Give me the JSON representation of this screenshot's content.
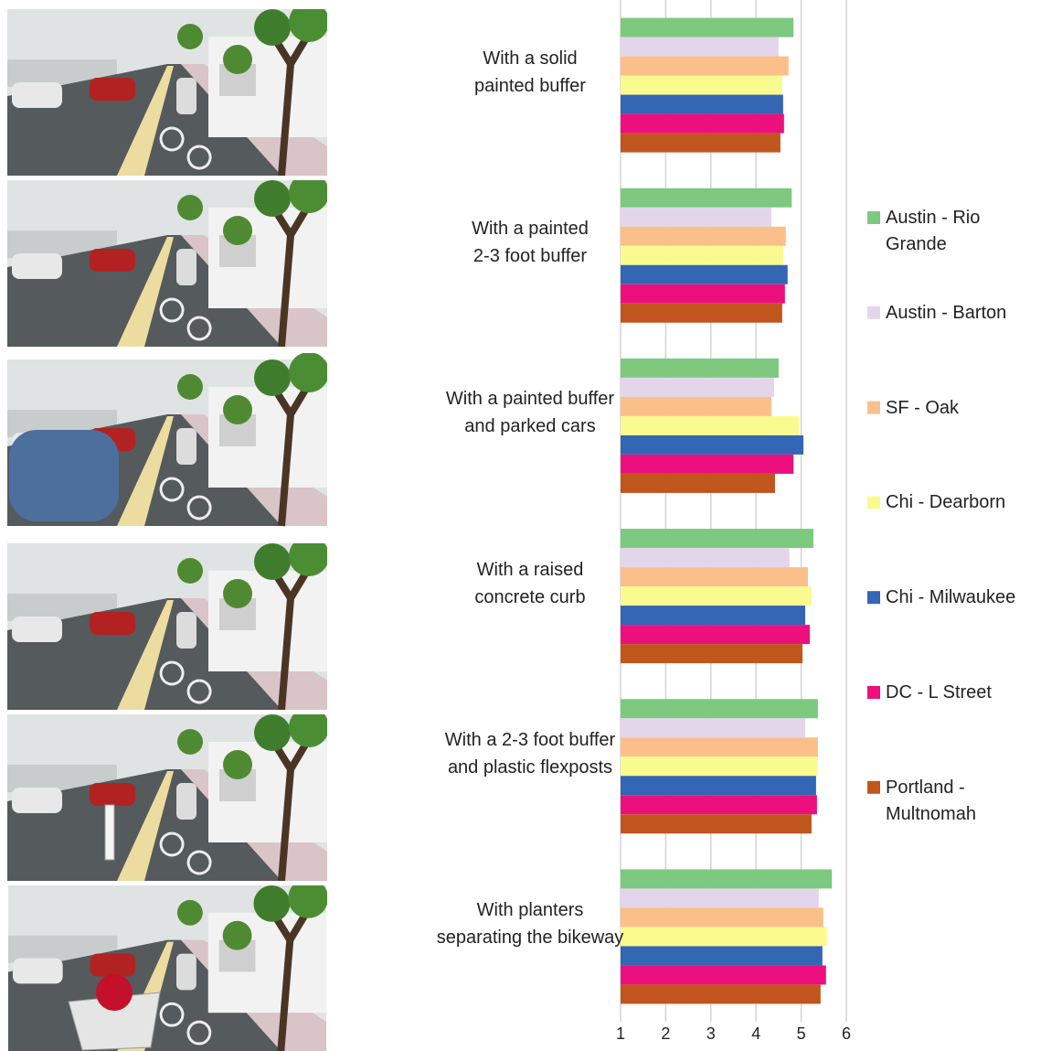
{
  "chart_data": {
    "type": "bar",
    "orientation": "horizontal",
    "categories": [
      "With a solid\npainted buffer",
      "With a painted\n2-3 foot buffer",
      "With a painted buffer\nand parked cars",
      "With a raised\nconcrete curb",
      "With a 2-3 foot buffer\nand plastic flexposts",
      "With planters\nseparating the bikeway"
    ],
    "series": [
      {
        "name": "Austin - Rio Grande",
        "color": "#7dc97f",
        "values": [
          4.83,
          4.79,
          4.5,
          5.27,
          5.37,
          5.68
        ]
      },
      {
        "name": "Austin - Barton",
        "color": "#e3d6ea",
        "values": [
          4.5,
          4.34,
          4.4,
          4.74,
          5.09,
          5.39
        ]
      },
      {
        "name": "SF - Oak",
        "color": "#fbbf8a",
        "values": [
          4.72,
          4.66,
          4.34,
          5.15,
          5.37,
          5.49
        ]
      },
      {
        "name": "Chi - Dearborn",
        "color": "#fafb8f",
        "values": [
          4.58,
          4.6,
          4.95,
          5.23,
          5.37,
          5.57
        ]
      },
      {
        "name": "Chi - Milwaukee",
        "color": "#3366b4",
        "values": [
          4.6,
          4.7,
          5.05,
          5.09,
          5.33,
          5.47
        ]
      },
      {
        "name": "DC - L Street",
        "color": "#ee0f7e",
        "values": [
          4.62,
          4.64,
          4.83,
          5.19,
          5.35,
          5.55
        ]
      },
      {
        "name": "Portland - Multnomah",
        "color": "#c0561e",
        "values": [
          4.54,
          4.58,
          4.42,
          5.03,
          5.23,
          5.43
        ]
      }
    ],
    "xlim": [
      1,
      6
    ],
    "xticks": [
      1,
      2,
      3,
      4,
      5,
      6
    ],
    "grid": true,
    "legend": "right"
  }
}
